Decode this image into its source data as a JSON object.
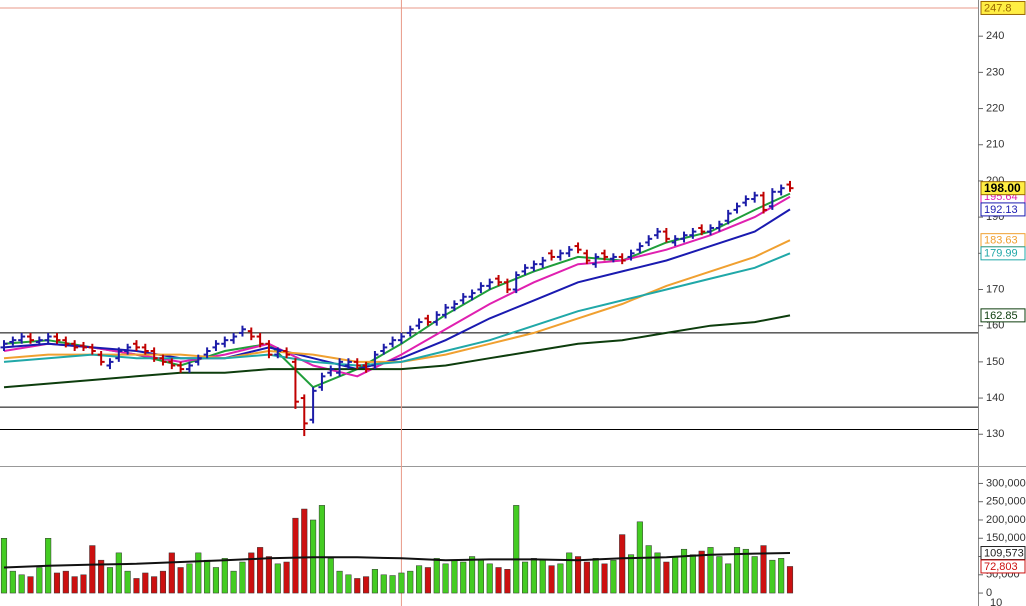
{
  "chart_data": {
    "type": "ohlc",
    "price": {
      "ylim": [
        121.5,
        250
      ],
      "yticks": [
        130,
        140,
        150,
        160,
        170,
        180,
        190,
        200,
        210,
        220,
        230,
        240
      ],
      "open": [
        154,
        155.5,
        156,
        157,
        155.5,
        156,
        157,
        156,
        155,
        154.5,
        154,
        152,
        149,
        151,
        153,
        155,
        154,
        153,
        151,
        150,
        149,
        148,
        150,
        152,
        154,
        155,
        156,
        158,
        158.5,
        157,
        155,
        152,
        153,
        150,
        140,
        134,
        143,
        147,
        147,
        149,
        150,
        149,
        149,
        153,
        155,
        156,
        158,
        160,
        162,
        161,
        163,
        165,
        167,
        168,
        170,
        171,
        173,
        172,
        170,
        175,
        176,
        177,
        180,
        179,
        180,
        182,
        180,
        177,
        180,
        178.5,
        179,
        179,
        181,
        183,
        185,
        186,
        183,
        184,
        185,
        187,
        186,
        187,
        189,
        192,
        194,
        195,
        196,
        193,
        197,
        199
      ],
      "high": [
        156,
        157,
        158,
        158,
        157,
        158,
        158,
        157,
        156,
        155.5,
        155,
        153,
        151,
        154,
        155,
        156,
        155,
        154,
        152,
        151,
        150,
        150,
        152,
        154,
        156,
        157,
        158,
        160,
        159.5,
        158,
        156,
        154,
        154,
        151,
        141,
        143,
        147,
        149,
        151,
        151,
        151,
        150,
        153,
        155,
        157,
        158,
        160,
        162,
        163,
        164,
        166,
        167,
        169,
        170,
        172,
        173,
        174,
        173,
        175,
        177,
        178,
        179,
        181,
        181,
        182,
        183,
        181,
        180,
        181,
        180,
        180,
        181,
        183,
        185,
        187,
        187,
        185,
        186,
        187,
        188,
        188,
        189,
        192,
        194,
        196,
        197,
        197,
        198,
        199,
        200
      ],
      "low": [
        153,
        154.5,
        155,
        155,
        154.5,
        155,
        155,
        154,
        153,
        153,
        152,
        149,
        148,
        150,
        152,
        153,
        152,
        150,
        149,
        148,
        147,
        147,
        149,
        151,
        153,
        154,
        155,
        157,
        156,
        154,
        151,
        151,
        151,
        137,
        129.5,
        133,
        142,
        146,
        146,
        148,
        148,
        147,
        148,
        152,
        154,
        155,
        157,
        159,
        160,
        160,
        162,
        164,
        166,
        167,
        169,
        170,
        171,
        169,
        169,
        174,
        175,
        176,
        178,
        178,
        179,
        180,
        177,
        176,
        178,
        177.5,
        177,
        178,
        180,
        182,
        184,
        183,
        182,
        183,
        184,
        185,
        185,
        186,
        188,
        191,
        193,
        194,
        191,
        192,
        196,
        197
      ],
      "close": [
        155,
        156,
        157,
        156,
        156,
        157,
        156,
        155,
        154,
        154,
        153,
        150,
        150,
        153,
        154,
        154,
        153,
        151,
        150,
        149,
        148,
        149,
        151,
        153,
        155,
        156,
        157,
        159,
        157,
        155,
        152,
        153,
        152,
        139,
        133,
        142,
        146,
        148,
        150,
        150,
        149,
        148,
        152,
        154,
        156,
        157,
        159,
        161,
        161,
        163,
        165,
        166,
        168,
        169,
        171,
        172,
        172,
        170,
        174,
        176,
        177,
        178,
        179,
        180,
        181,
        181,
        178,
        179,
        179,
        179,
        178,
        180,
        182,
        184,
        186,
        184,
        184,
        185,
        186,
        186,
        187,
        188,
        191,
        193,
        195,
        196,
        192,
        197,
        198,
        198
      ],
      "up_color": "#1c1ca8",
      "down_color": "#c00000",
      "last_label": {
        "value": 198,
        "label": "198.00"
      },
      "hlines": [
        158,
        137.5,
        131.3
      ],
      "crosshair": {
        "x": 45,
        "value": 247.8
      },
      "moving_averages": {
        "x": [
          0,
          5,
          10,
          15,
          20,
          25,
          30,
          35,
          40,
          45,
          50,
          55,
          60,
          65,
          70,
          75,
          80,
          85,
          89
        ],
        "series": [
          {
            "color": "#1f9e3a",
            "values": [
              155,
              156,
              154,
              152,
              149,
              153,
              155,
              143,
              148,
              155,
              163,
              170,
              175,
              179,
              178,
              183,
              186,
              192,
              196.5
            ]
          },
          {
            "color": "#e020b0",
            "values": [
              153,
              155,
              154,
              152,
              150,
              152,
              155,
              149,
              146,
              152,
              159,
              166,
              172,
              177,
              178,
              181,
              185,
              190,
              195.64
            ]
          },
          {
            "color": "#1a1ab0",
            "values": [
              154,
              155,
              154,
              153,
              151,
              151,
              154,
              151,
              148,
              151,
              156,
              162,
              167,
              172,
              175,
              178,
              182,
              186,
              192.13
            ]
          },
          {
            "color": "#f0a030",
            "values": [
              151,
              152,
              152,
              152,
              152,
              151,
              153,
              152,
              150,
              150,
              152,
              155,
              158,
              162,
              166,
              171,
              175,
              179,
              183.63
            ]
          },
          {
            "color": "#20a8a8",
            "values": [
              150,
              151,
              152,
              151,
              151,
              151,
              152,
              150,
              149,
              150,
              153,
              156,
              160,
              164,
              167,
              170,
              173,
              176,
              179.99
            ]
          },
          {
            "color": "#0d3d0d",
            "values": [
              143,
              144,
              145,
              146,
              147,
              147,
              148,
              148,
              148,
              148,
              149,
              151,
              153,
              155,
              156,
              158,
              160,
              161,
              162.85
            ]
          }
        ]
      }
    },
    "volume": {
      "ylim": [
        -19000,
        345000
      ],
      "yticks": [
        0,
        {
          "value": 50000,
          "label": "50,000"
        },
        {
          "value": 100000,
          "label": "100,000"
        },
        {
          "value": 150000,
          "label": "150,000"
        },
        {
          "value": 200000,
          "label": "200,000"
        },
        {
          "value": 250000,
          "label": "250,000"
        },
        {
          "value": 300000,
          "label": "300,000"
        }
      ],
      "values": [
        150000,
        60000,
        50000,
        45000,
        70000,
        150000,
        55000,
        60000,
        45000,
        50000,
        130000,
        90000,
        70000,
        110000,
        60000,
        40000,
        55000,
        45000,
        60000,
        110000,
        70000,
        80000,
        110000,
        90000,
        70000,
        95000,
        60000,
        85000,
        110000,
        125000,
        100000,
        80000,
        85000,
        205000,
        230000,
        200000,
        240000,
        95000,
        60000,
        50000,
        40000,
        45000,
        65000,
        50000,
        48000,
        55000,
        60000,
        75000,
        70000,
        95000,
        80000,
        90000,
        85000,
        100000,
        90000,
        80000,
        70000,
        65000,
        240000,
        85000,
        95000,
        90000,
        75000,
        80000,
        110000,
        100000,
        85000,
        95000,
        80000,
        90000,
        160000,
        105000,
        195000,
        130000,
        110000,
        85000,
        100000,
        120000,
        105000,
        115000,
        125000,
        100000,
        80000,
        125000,
        120000,
        100000,
        130000,
        90000,
        95000,
        72803
      ],
      "up_color": "#44cc22",
      "down_color": "#cc1010",
      "last_label": {
        "value": 72803,
        "label": "72,803"
      },
      "ma": {
        "x": [
          0,
          5,
          10,
          15,
          20,
          25,
          30,
          35,
          40,
          45,
          50,
          55,
          60,
          65,
          70,
          75,
          80,
          85,
          89
        ],
        "color": "#111111",
        "values": [
          70000,
          75000,
          78000,
          80000,
          85000,
          90000,
          95000,
          98000,
          98000,
          95000,
          90000,
          92000,
          92000,
          90000,
          95000,
          98000,
          105000,
          108000,
          109573
        ],
        "last_label": {
          "value": 109573,
          "label": "109,573"
        }
      }
    },
    "lower_tick": "10"
  }
}
